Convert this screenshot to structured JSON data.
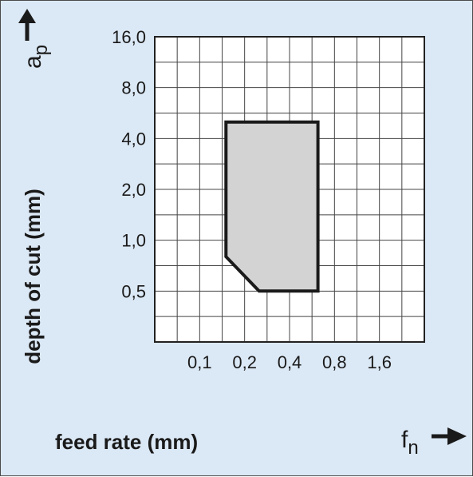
{
  "chart_data": {
    "type": "area",
    "title": "",
    "xlabel": "feed rate (mm)",
    "ylabel": "depth of cut (mm)",
    "x_symbol": "f",
    "x_symbol_sub": "n",
    "y_symbol": "a",
    "y_symbol_sub": "p",
    "x_scale": "log2",
    "y_scale": "log2",
    "x_ticks": [
      0.1,
      0.2,
      0.4,
      0.8,
      1.6
    ],
    "x_tick_labels": [
      "0,1",
      "0,2",
      "0,4",
      "0,8",
      "1,6"
    ],
    "y_ticks": [
      0.5,
      1.0,
      2.0,
      4.0,
      8.0,
      16.0
    ],
    "y_tick_labels": [
      "0,5",
      "1,0",
      "2,0",
      "4,0",
      "8,0",
      "16,0"
    ],
    "xlim": [
      0.05,
      3.2
    ],
    "ylim": [
      0.25,
      16.0
    ],
    "grid": true,
    "series": [
      {
        "polygon": [
          {
            "x": 0.15,
            "y": 5.0
          },
          {
            "x": 0.62,
            "y": 5.0
          },
          {
            "x": 0.62,
            "y": 0.5
          },
          {
            "x": 0.25,
            "y": 0.5
          },
          {
            "x": 0.15,
            "y": 0.8
          }
        ],
        "fill": "#d3d3d3",
        "stroke": "#1a1a1a"
      }
    ]
  },
  "colors": {
    "background": "#dbe8f5",
    "plot_background": "#ffffff",
    "grid": "#444444"
  }
}
